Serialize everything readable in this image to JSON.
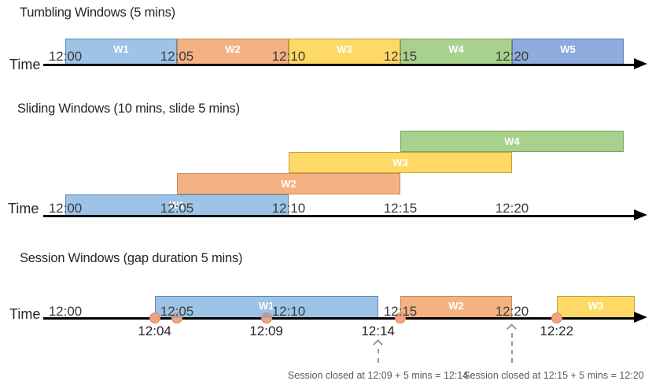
{
  "palette": {
    "blue": {
      "fill": "#9DC3E6",
      "border": "#5D8AB4"
    },
    "orange": {
      "fill": "#F4B183",
      "border": "#C88A58"
    },
    "yellow": {
      "fill": "#FFD966",
      "border": "#BFA141"
    },
    "green": {
      "fill": "#A9D18E",
      "border": "#7BA25C"
    },
    "periwinkle": {
      "fill": "#8FAADC",
      "border": "#5C77AE"
    }
  },
  "event_dot": {
    "fill": "#F2A27E",
    "border": "#D08D68",
    "occluded_top": "#A6A3B0"
  },
  "axis_color": "#000000",
  "sections": {
    "tumbling": {
      "title": "Tumbling Windows (5 mins)",
      "time_axis_label": "Time",
      "ticks": [
        {
          "label": "12:00",
          "min": 0
        },
        {
          "label": "12:05",
          "min": 5
        },
        {
          "label": "12:10",
          "min": 10
        },
        {
          "label": "12:15",
          "min": 15
        },
        {
          "label": "12:20",
          "min": 20
        }
      ],
      "windows": [
        {
          "label": "W1",
          "start_min": 0,
          "end_min": 5,
          "color": "blue"
        },
        {
          "label": "W2",
          "start_min": 5,
          "end_min": 10,
          "color": "orange"
        },
        {
          "label": "W3",
          "start_min": 10,
          "end_min": 15,
          "color": "yellow"
        },
        {
          "label": "W4",
          "start_min": 15,
          "end_min": 20,
          "color": "green"
        },
        {
          "label": "W5",
          "start_min": 20,
          "end_min": 25,
          "color": "periwinkle"
        }
      ]
    },
    "sliding": {
      "title": "Sliding Windows (10 mins, slide 5 mins)",
      "time_axis_label": "Time",
      "ticks": [
        {
          "label": "12:00",
          "min": 0
        },
        {
          "label": "12:05",
          "min": 5
        },
        {
          "label": "12:10",
          "min": 10
        },
        {
          "label": "12:15",
          "min": 15
        },
        {
          "label": "12:20",
          "min": 20
        }
      ],
      "windows": [
        {
          "label": "W1",
          "start_min": 0,
          "end_min": 10,
          "color": "blue",
          "row": 0
        },
        {
          "label": "W2",
          "start_min": 5,
          "end_min": 15,
          "color": "orange",
          "row": 1
        },
        {
          "label": "W3",
          "start_min": 10,
          "end_min": 20,
          "color": "yellow",
          "row": 2
        },
        {
          "label": "W4",
          "start_min": 15,
          "end_min": 25,
          "color": "green",
          "row": 3
        }
      ]
    },
    "session": {
      "title": "Session Windows (gap duration 5 mins)",
      "time_axis_label": "Time",
      "ticks": [
        {
          "label": "12:00",
          "min": 0
        },
        {
          "label": "12:05",
          "min": 5
        },
        {
          "label": "12:10",
          "min": 10
        },
        {
          "label": "12:15",
          "min": 15
        },
        {
          "label": "12:20",
          "min": 20
        }
      ],
      "windows": [
        {
          "label": "W1",
          "start_min": 4,
          "end_min": 14,
          "color": "blue"
        },
        {
          "label": "W2",
          "start_min": 15,
          "end_min": 20,
          "color": "orange"
        },
        {
          "label": "W3",
          "start_min": 22,
          "end_min": 25.5,
          "color": "yellow"
        }
      ],
      "events": [
        {
          "min": 4,
          "occluded": false
        },
        {
          "min": 5,
          "occluded": true
        },
        {
          "min": 9,
          "occluded": true
        },
        {
          "min": 15,
          "occluded": false
        },
        {
          "min": 22,
          "occluded": false
        }
      ],
      "event_labels": [
        {
          "label": "12:04",
          "min": 4
        },
        {
          "label": "12:09",
          "min": 9
        },
        {
          "label": "12:14",
          "min": 14
        },
        {
          "label": "12:22",
          "min": 22
        }
      ],
      "annotations": [
        {
          "text": "Session closed at 12:09 + 5 mins = 12:14",
          "min": 14
        },
        {
          "text": "Session closed at 12:15 + 5 mins = 12:20",
          "min": 20
        }
      ]
    }
  }
}
